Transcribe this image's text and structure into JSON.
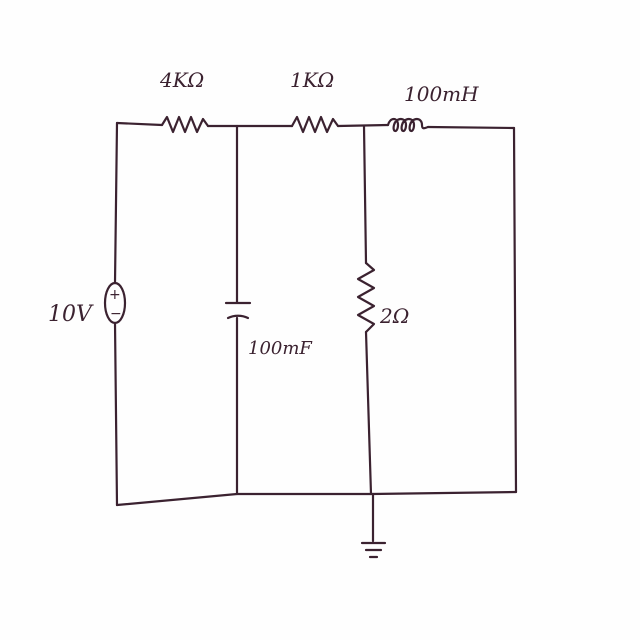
{
  "components": {
    "resistor_1": {
      "label": "4KΩ"
    },
    "resistor_2": {
      "label": "1KΩ"
    },
    "inductor": {
      "label": "100mH"
    },
    "voltage_source": {
      "label": "10V",
      "polarity_top": "+",
      "polarity_bottom": "−"
    },
    "capacitor": {
      "label": "100mF"
    },
    "resistor_3": {
      "label": "2Ω"
    }
  },
  "colors": {
    "ink": "#3b2230",
    "paper": "#fefefe"
  },
  "icons": {
    "ground": "ground-icon"
  }
}
